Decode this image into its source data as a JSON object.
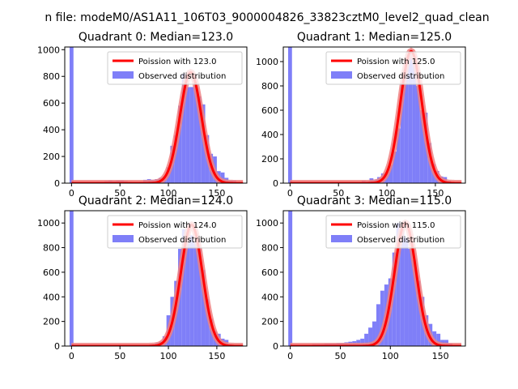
{
  "figure": {
    "suptitle": "n file: modeM0/AS1A11_106T03_9000004826_33823cztM0_level2_quad_clean"
  },
  "colors": {
    "poisson_line": "#ff0000",
    "poisson_band": "#f08080",
    "histogram": "#7f7ff8",
    "axes": "#000000",
    "background": "#ffffff"
  },
  "chart_data": [
    {
      "type": "histogram",
      "title": "Quadrant 0: Median=123.0",
      "xlim": [
        -7,
        181
      ],
      "ylim": [
        0,
        1020
      ],
      "xticks": [
        0,
        50,
        100,
        150
      ],
      "yticks": [
        0,
        200,
        400,
        600,
        800,
        1000
      ],
      "legend": [
        "Poission with 123.0",
        "Observed distribution"
      ],
      "legend_position": "upper-right",
      "median": 123.0,
      "poisson_peak": 830,
      "bin_width": 4,
      "zero_bin_value": 1020,
      "bins": [
        [
          4,
          5
        ],
        [
          8,
          5
        ],
        [
          12,
          5
        ],
        [
          16,
          5
        ],
        [
          20,
          5
        ],
        [
          24,
          5
        ],
        [
          28,
          10
        ],
        [
          32,
          10
        ],
        [
          36,
          15
        ],
        [
          40,
          20
        ],
        [
          44,
          15
        ],
        [
          48,
          20
        ],
        [
          52,
          20
        ],
        [
          56,
          15
        ],
        [
          60,
          10
        ],
        [
          64,
          5
        ],
        [
          68,
          5
        ],
        [
          72,
          10
        ],
        [
          76,
          25
        ],
        [
          80,
          30
        ],
        [
          84,
          25
        ],
        [
          88,
          30
        ],
        [
          92,
          40
        ],
        [
          96,
          50
        ],
        [
          100,
          120
        ],
        [
          104,
          280
        ],
        [
          108,
          360
        ],
        [
          112,
          580
        ],
        [
          116,
          820
        ],
        [
          120,
          720
        ],
        [
          124,
          720
        ],
        [
          128,
          730
        ],
        [
          132,
          650
        ],
        [
          136,
          590
        ],
        [
          140,
          360
        ],
        [
          144,
          220
        ],
        [
          148,
          200
        ],
        [
          152,
          90
        ],
        [
          156,
          80
        ],
        [
          160,
          40
        ],
        [
          164,
          20
        ],
        [
          168,
          20
        ],
        [
          172,
          5
        ]
      ]
    },
    {
      "type": "histogram",
      "title": "Quadrant 1: Median=125.0",
      "xlim": [
        -7,
        181
      ],
      "ylim": [
        0,
        1120
      ],
      "xticks": [
        0,
        50,
        100,
        150
      ],
      "yticks": [
        0,
        200,
        400,
        600,
        800,
        1000
      ],
      "legend": [
        "Poission with 125.0",
        "Observed distribution"
      ],
      "legend_position": "upper-right",
      "median": 125.0,
      "poisson_peak": 1085,
      "bin_width": 4,
      "zero_bin_value": 1120,
      "bins": [
        [
          4,
          5
        ],
        [
          8,
          5
        ],
        [
          12,
          5
        ],
        [
          16,
          5
        ],
        [
          20,
          5
        ],
        [
          24,
          5
        ],
        [
          28,
          5
        ],
        [
          32,
          5
        ],
        [
          36,
          5
        ],
        [
          40,
          5
        ],
        [
          44,
          5
        ],
        [
          48,
          5
        ],
        [
          52,
          5
        ],
        [
          56,
          5
        ],
        [
          60,
          5
        ],
        [
          64,
          5
        ],
        [
          68,
          10
        ],
        [
          72,
          10
        ],
        [
          76,
          20
        ],
        [
          80,
          15
        ],
        [
          84,
          40
        ],
        [
          88,
          30
        ],
        [
          92,
          50
        ],
        [
          96,
          80
        ],
        [
          100,
          90
        ],
        [
          104,
          150
        ],
        [
          108,
          260
        ],
        [
          112,
          450
        ],
        [
          116,
          830
        ],
        [
          120,
          1000
        ],
        [
          124,
          1080
        ],
        [
          128,
          1000
        ],
        [
          132,
          800
        ],
        [
          136,
          600
        ],
        [
          140,
          580
        ],
        [
          144,
          330
        ],
        [
          148,
          160
        ],
        [
          152,
          100
        ],
        [
          156,
          55
        ],
        [
          160,
          50
        ],
        [
          164,
          20
        ],
        [
          168,
          10
        ],
        [
          172,
          5
        ]
      ]
    },
    {
      "type": "histogram",
      "title": "Quadrant 2: Median=124.0",
      "xlim": [
        -7,
        181
      ],
      "ylim": [
        0,
        1100
      ],
      "xticks": [
        0,
        50,
        100,
        150
      ],
      "yticks": [
        0,
        200,
        400,
        600,
        800,
        1000
      ],
      "legend": [
        "Poission with 124.0",
        "Observed distribution"
      ],
      "legend_position": "upper-right",
      "median": 124.0,
      "poisson_peak": 985,
      "bin_width": 4,
      "zero_bin_value": 1100,
      "bins": [
        [
          4,
          5
        ],
        [
          8,
          5
        ],
        [
          12,
          5
        ],
        [
          16,
          5
        ],
        [
          20,
          5
        ],
        [
          24,
          5
        ],
        [
          28,
          5
        ],
        [
          32,
          5
        ],
        [
          36,
          5
        ],
        [
          40,
          5
        ],
        [
          44,
          5
        ],
        [
          48,
          5
        ],
        [
          52,
          5
        ],
        [
          56,
          5
        ],
        [
          60,
          5
        ],
        [
          64,
          5
        ],
        [
          68,
          5
        ],
        [
          72,
          5
        ],
        [
          76,
          5
        ],
        [
          80,
          10
        ],
        [
          84,
          15
        ],
        [
          88,
          25
        ],
        [
          92,
          35
        ],
        [
          96,
          80
        ],
        [
          100,
          250
        ],
        [
          104,
          400
        ],
        [
          108,
          530
        ],
        [
          112,
          790
        ],
        [
          116,
          950
        ],
        [
          120,
          860
        ],
        [
          124,
          900
        ],
        [
          128,
          850
        ],
        [
          132,
          800
        ],
        [
          136,
          620
        ],
        [
          140,
          380
        ],
        [
          144,
          220
        ],
        [
          148,
          120
        ],
        [
          152,
          100
        ],
        [
          156,
          60
        ],
        [
          160,
          50
        ],
        [
          164,
          15
        ],
        [
          168,
          10
        ],
        [
          172,
          5
        ]
      ]
    },
    {
      "type": "histogram",
      "title": "Quadrant 3: Median=115.0",
      "xlim": [
        -7,
        175
      ],
      "ylim": [
        0,
        1100
      ],
      "xticks": [
        0,
        50,
        100,
        150
      ],
      "yticks": [
        0,
        200,
        400,
        600,
        800,
        1000
      ],
      "legend": [
        "Poission with 115.0",
        "Observed distribution"
      ],
      "legend_position": "upper-right",
      "median": 115.0,
      "poisson_peak": 1000,
      "bin_width": 4,
      "zero_bin_value": 1100,
      "bins": [
        [
          4,
          10
        ],
        [
          8,
          10
        ],
        [
          12,
          10
        ],
        [
          16,
          10
        ],
        [
          20,
          10
        ],
        [
          24,
          15
        ],
        [
          28,
          15
        ],
        [
          32,
          15
        ],
        [
          36,
          20
        ],
        [
          40,
          20
        ],
        [
          44,
          20
        ],
        [
          48,
          25
        ],
        [
          52,
          25
        ],
        [
          56,
          30
        ],
        [
          60,
          35
        ],
        [
          64,
          40
        ],
        [
          68,
          50
        ],
        [
          72,
          60
        ],
        [
          76,
          100
        ],
        [
          80,
          150
        ],
        [
          84,
          200
        ],
        [
          88,
          340
        ],
        [
          92,
          450
        ],
        [
          96,
          500
        ],
        [
          100,
          550
        ],
        [
          104,
          760
        ],
        [
          108,
          1000
        ],
        [
          112,
          970
        ],
        [
          116,
          880
        ],
        [
          120,
          790
        ],
        [
          124,
          700
        ],
        [
          128,
          530
        ],
        [
          132,
          400
        ],
        [
          136,
          250
        ],
        [
          140,
          180
        ],
        [
          144,
          120
        ],
        [
          148,
          100
        ],
        [
          152,
          50
        ],
        [
          156,
          50
        ],
        [
          160,
          20
        ],
        [
          164,
          10
        ]
      ]
    }
  ]
}
